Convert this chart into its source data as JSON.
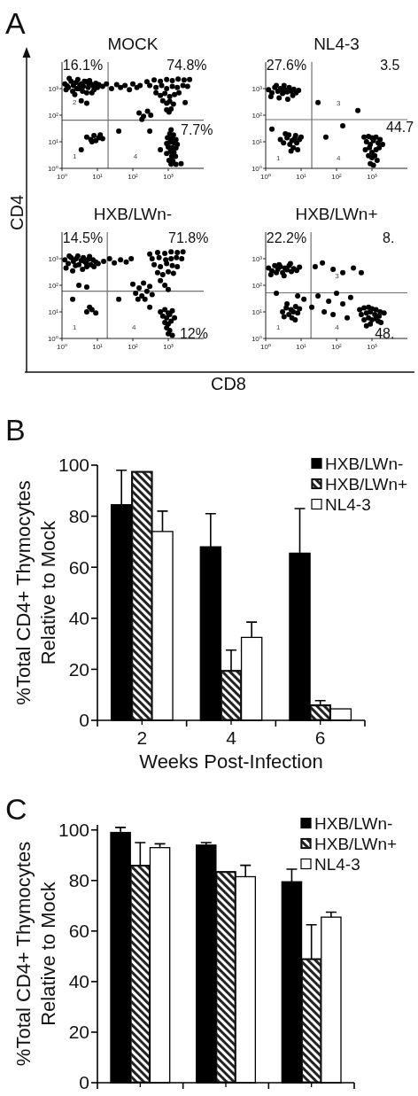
{
  "chart_data": [
    {
      "type": "scatter",
      "title": "MOCK",
      "xlabel": "CD8",
      "ylabel": "CD4",
      "log": "xy",
      "marker": "circle",
      "color": "#000000",
      "xlim": [
        1,
        10000
      ],
      "ylim": [
        1,
        10000
      ],
      "xticks": [
        {
          "value": 1,
          "label": "10⁰"
        },
        {
          "value": 10,
          "label": "10¹"
        },
        {
          "value": 100,
          "label": "10²"
        },
        {
          "value": 1000,
          "label": "10³"
        }
      ],
      "yticks": [
        {
          "value": 1,
          "label": "10⁰"
        },
        {
          "value": 10,
          "label": "10¹"
        },
        {
          "value": 100,
          "label": "10²"
        },
        {
          "value": 1000,
          "label": "10³"
        }
      ],
      "ref_lines": [
        {
          "axis": "x",
          "value": 20,
          "color": "#707070"
        },
        {
          "axis": "y",
          "value": 65,
          "color": "#707070"
        }
      ],
      "annotations": [
        "A",
        "16.1%",
        "74.8%",
        "7.7%",
        "2",
        "1",
        "4"
      ],
      "x": [
        1.2,
        1.5,
        1.8,
        2.1,
        2.5,
        3,
        3.5,
        4,
        4.8,
        5.5,
        6.5,
        7.5,
        9,
        10,
        1.3,
        2,
        2.8,
        3.8,
        5,
        6,
        8,
        1.6,
        2.3,
        4.3,
        11,
        3.2,
        7,
        1.4,
        5.8,
        2.6,
        3.5,
        5,
        14,
        18,
        25,
        35,
        45,
        60,
        80,
        100,
        130,
        160,
        250,
        400,
        600,
        900,
        1300,
        1900,
        2800,
        4000,
        300,
        450,
        650,
        900,
        1300,
        1800,
        2600,
        3500,
        450,
        600,
        800,
        1100,
        1500,
        2000,
        700,
        900,
        1100,
        1400,
        900,
        1050,
        1200,
        150,
        200,
        260,
        320,
        180,
        1200,
        1100,
        1400,
        950,
        1250,
        1650,
        1100,
        1450,
        900,
        1800,
        1000,
        1300,
        1650,
        1150,
        1450,
        900,
        1250,
        1600,
        1050,
        1350,
        1200,
        1650,
        2300,
        5,
        6.5,
        8,
        9,
        11,
        7,
        12,
        14,
        3.5,
        40,
        300,
        3000,
        600
      ],
      "values": [
        1500,
        1100,
        1900,
        1300,
        1700,
        1000,
        1500,
        1200,
        1800,
        1100,
        1500,
        1300,
        1600,
        1100,
        900,
        800,
        2200,
        800,
        700,
        2000,
        900,
        2400,
        600,
        1900,
        1400,
        1300,
        700,
        1250,
        1400,
        1000,
        350,
        280,
        1200,
        1500,
        1000,
        1400,
        1100,
        1300,
        900,
        1500,
        1100,
        1300,
        1800,
        2100,
        1900,
        2200,
        2000,
        2300,
        2100,
        2200,
        1300,
        1100,
        1300,
        1000,
        1200,
        1100,
        1300,
        1200,
        700,
        550,
        650,
        500,
        600,
        700,
        350,
        280,
        330,
        260,
        160,
        130,
        170,
        120,
        90,
        140,
        100,
        70,
        28,
        20,
        18,
        14,
        13,
        12,
        9.5,
        9,
        8.5,
        8,
        6.3,
        6,
        5.8,
        4.3,
        4,
        3.6,
        2.9,
        2.8,
        2,
        1.9,
        1.45,
        1.4,
        1.5,
        15,
        12,
        17,
        11,
        14,
        10,
        18,
        13,
        5,
        25,
        25,
        300,
        5
      ]
    },
    {
      "type": "scatter",
      "title": "NL4-3",
      "log": "xy",
      "marker": "circle",
      "color": "#000000",
      "xlim": [
        1,
        10000
      ],
      "ylim": [
        1,
        10000
      ],
      "xticks": [
        {
          "value": 1,
          "label": "10⁰"
        },
        {
          "value": 10,
          "label": "10¹"
        },
        {
          "value": 100,
          "label": "10²"
        },
        {
          "value": 1000,
          "label": "10³"
        }
      ],
      "yticks": [
        {
          "value": 1,
          "label": "10⁰"
        },
        {
          "value": 10,
          "label": "10¹"
        },
        {
          "value": 100,
          "label": "10²"
        },
        {
          "value": 1000,
          "label": "10³"
        }
      ],
      "ref_lines": [
        {
          "axis": "x",
          "value": 20,
          "color": "#707070"
        },
        {
          "axis": "y",
          "value": 68,
          "color": "#707070"
        }
      ],
      "annotations": [
        "27.6%",
        "3.5",
        "44.7",
        "3",
        "1",
        "4"
      ],
      "x": [
        1.2,
        1.5,
        1.8,
        2.2,
        2.6,
        3,
        3.5,
        4,
        4.6,
        5.3,
        6.2,
        7.2,
        8.5,
        1.4,
        2.4,
        3.3,
        4.2,
        5.8,
        2,
        2.9,
        2.6,
        3.2,
        4,
        4.8,
        5.5,
        6.5,
        7.5,
        9,
        10,
        4.5,
        6,
        8,
        3.6,
        5.2,
        7,
        600,
        800,
        1000,
        1300,
        1700,
        700,
        900,
        1100,
        1500,
        2000,
        650,
        850,
        1000,
        1300,
        1600,
        800,
        1000,
        1200,
        1400,
        900,
        1100,
        30,
        400,
        150,
        1.5,
        50
      ],
      "values": [
        900,
        700,
        1100,
        800,
        1000,
        650,
        900,
        750,
        1100,
        800,
        950,
        700,
        850,
        500,
        450,
        1300,
        400,
        550,
        1300,
        850,
        12,
        9,
        14,
        8,
        11,
        13,
        9,
        12,
        15,
        18,
        6,
        5,
        20,
        4.5,
        17,
        15,
        16,
        14,
        15,
        12,
        10,
        8,
        11,
        9,
        8,
        5,
        6,
        4,
        5,
        6,
        3,
        2.5,
        3,
        2,
        1.5,
        1.3,
        300,
        150,
        40,
        30,
        15
      ]
    },
    {
      "type": "scatter",
      "title": "HXB/LWn-",
      "log": "xy",
      "marker": "circle",
      "color": "#000000",
      "xlim": [
        1,
        10000
      ],
      "ylim": [
        1,
        10000
      ],
      "xticks": [
        {
          "value": 1,
          "label": "10⁰"
        },
        {
          "value": 10,
          "label": "10¹"
        },
        {
          "value": 100,
          "label": "10²"
        },
        {
          "value": 1000,
          "label": "10³"
        }
      ],
      "yticks": [
        {
          "value": 1,
          "label": "10⁰"
        },
        {
          "value": 10,
          "label": "10¹"
        },
        {
          "value": 100,
          "label": "10²"
        },
        {
          "value": 1000,
          "label": "10³"
        }
      ],
      "ref_lines": [
        {
          "axis": "x",
          "value": 19,
          "color": "#707070"
        },
        {
          "axis": "y",
          "value": 60,
          "color": "#707070"
        }
      ],
      "annotations": [
        "14.5%",
        "71.8%",
        "12%",
        "1",
        "4"
      ],
      "x": [
        1.2,
        1.5,
        1.8,
        2.1,
        2.5,
        3,
        3.5,
        4,
        4.8,
        5.5,
        6.5,
        7.5,
        9,
        10.5,
        1.3,
        2,
        2.8,
        3.8,
        5,
        6,
        8,
        1.6,
        4.3,
        2.4,
        3,
        5,
        15,
        22,
        30,
        45,
        65,
        90,
        300,
        500,
        800,
        1200,
        1800,
        2600,
        350,
        550,
        850,
        1200,
        1700,
        2400,
        400,
        600,
        900,
        1300,
        1800,
        500,
        700,
        1000,
        1400,
        100,
        150,
        200,
        120,
        180,
        250,
        300,
        220,
        350,
        140,
        600,
        800,
        1000,
        600,
        800,
        1000,
        1300,
        700,
        900,
        1100,
        1500,
        800,
        1000,
        1200,
        900,
        1100,
        1000,
        1300,
        5,
        7,
        9,
        6,
        40,
        2,
        300
      ],
      "values": [
        900,
        650,
        1100,
        800,
        1000,
        600,
        850,
        1100,
        700,
        950,
        600,
        900,
        750,
        650,
        450,
        350,
        1250,
        400,
        500,
        1200,
        500,
        1250,
        800,
        550,
        100,
        85,
        800,
        1000,
        700,
        900,
        750,
        1000,
        1500,
        1700,
        1600,
        1800,
        1700,
        1800,
        1000,
        1100,
        900,
        1000,
        1100,
        1000,
        600,
        500,
        650,
        550,
        500,
        300,
        250,
        320,
        280,
        110,
        80,
        120,
        50,
        40,
        60,
        90,
        30,
        45,
        30,
        150,
        100,
        70,
        10,
        12,
        9,
        11,
        7,
        6,
        8,
        6,
        4,
        3.5,
        4.5,
        2.5,
        2,
        1.5,
        1.3,
        10,
        12,
        9,
        15,
        30,
        30,
        15
      ]
    },
    {
      "type": "scatter",
      "title": "HXB/LWn+",
      "log": "xy",
      "marker": "circle",
      "color": "#000000",
      "xlim": [
        1,
        10000
      ],
      "ylim": [
        1,
        10000
      ],
      "xticks": [
        {
          "value": 1,
          "label": "10⁰"
        },
        {
          "value": 10,
          "label": "10¹"
        },
        {
          "value": 100,
          "label": "10²"
        },
        {
          "value": 1000,
          "label": "10³"
        }
      ],
      "yticks": [
        {
          "value": 1,
          "label": "10⁰"
        },
        {
          "value": 10,
          "label": "10¹"
        },
        {
          "value": 100,
          "label": "10²"
        },
        {
          "value": 1000,
          "label": "10³"
        }
      ],
      "ref_lines": [
        {
          "axis": "x",
          "value": 19,
          "color": "#707070"
        },
        {
          "axis": "y",
          "value": 52,
          "color": "#707070"
        }
      ],
      "annotations": [
        "22.2%",
        "8.",
        "48.",
        "3",
        "1",
        "4"
      ],
      "x": [
        1.2,
        1.5,
        1.8,
        2.2,
        2.6,
        3,
        3.5,
        4,
        4.6,
        5.3,
        6.2,
        7.5,
        9,
        1.4,
        2.4,
        3.3,
        5,
        2,
        3,
        3.8,
        4.5,
        5.2,
        6,
        7,
        8,
        5.5,
        4,
        6.8,
        9,
        3.3,
        450,
        600,
        800,
        1000,
        1300,
        1700,
        500,
        700,
        900,
        1200,
        1600,
        2200,
        600,
        800,
        1000,
        1300,
        1800,
        700,
        900,
        1500,
        12,
        20,
        30,
        45,
        60,
        80,
        100,
        150,
        200,
        250,
        8,
        2,
        25,
        40,
        80,
        150,
        300,
        500
      ],
      "values": [
        450,
        350,
        550,
        400,
        500,
        300,
        450,
        380,
        550,
        330,
        420,
        360,
        480,
        250,
        600,
        230,
        650,
        300,
        10,
        14,
        8,
        12,
        10,
        16,
        9,
        6,
        20,
        5,
        13,
        6.5,
        12,
        14,
        15,
        13,
        12,
        10,
        8,
        9,
        10,
        8,
        7,
        9,
        5,
        6,
        5,
        5.5,
        4,
        3,
        3.5,
        4.5,
        30,
        15,
        40,
        10,
        25,
        8,
        50,
        20,
        6,
        35,
        40,
        50,
        500,
        700,
        400,
        300,
        450,
        300
      ]
    },
    {
      "type": "bar",
      "annotations": [
        "B"
      ],
      "categories": [
        "2",
        "4",
        "6"
      ],
      "xlabel": "Weeks Post-Infection",
      "ylabel": "%Total CD4+ Thymocytes\nRelative to Mock",
      "ylim": [
        0,
        100
      ],
      "yticks": [
        0,
        20,
        40,
        60,
        80,
        100
      ],
      "legend": "top right",
      "series": [
        {
          "name": "HXB/LWn-",
          "color": "#000000",
          "values": [
            84.5,
            68,
            65.5
          ],
          "errors": [
            [
              84.5,
              98
            ],
            [
              68,
              81
            ],
            [
              65.5,
              83
            ]
          ]
        },
        {
          "name": "HXB/LWn+",
          "color": "#222222",
          "values": [
            97.5,
            19.5,
            6
          ],
          "errors": [
            null,
            [
              19.5,
              27.5
            ],
            [
              6,
              7.7
            ]
          ]
        },
        {
          "name": "NL4-3",
          "color": "#ffffff",
          "values": [
            74,
            32.5,
            4.5
          ],
          "errors": [
            [
              74,
              82
            ],
            [
              32.5,
              38.5
            ],
            null
          ]
        }
      ]
    },
    {
      "type": "bar",
      "annotations": [
        "C"
      ],
      "categories": [
        null,
        null,
        null
      ],
      "ylabel": "%Total CD4+ Thymocytes\nRelative to Mock",
      "ylim": [
        0,
        102
      ],
      "yticks": [
        0,
        20,
        40,
        60,
        80,
        100
      ],
      "legend": "top right",
      "series": [
        {
          "name": "HXB/LWn-",
          "color": "#000000",
          "values": [
            99,
            94,
            79.5
          ],
          "errors": [
            [
              99,
              101
            ],
            [
              94,
              95
            ],
            [
              79.5,
              84.5
            ]
          ]
        },
        {
          "name": "HXB/LWn+",
          "color": "#222222",
          "values": [
            86,
            83.5,
            49
          ],
          "errors": [
            [
              86,
              95
            ],
            null,
            [
              49,
              62.5
            ]
          ]
        },
        {
          "name": "NL4-3",
          "color": "#ffffff",
          "values": [
            93,
            81.5,
            65.5
          ],
          "errors": [
            [
              93,
              94.5
            ],
            [
              81.5,
              86
            ],
            [
              65.5,
              67.5
            ]
          ]
        }
      ]
    }
  ]
}
